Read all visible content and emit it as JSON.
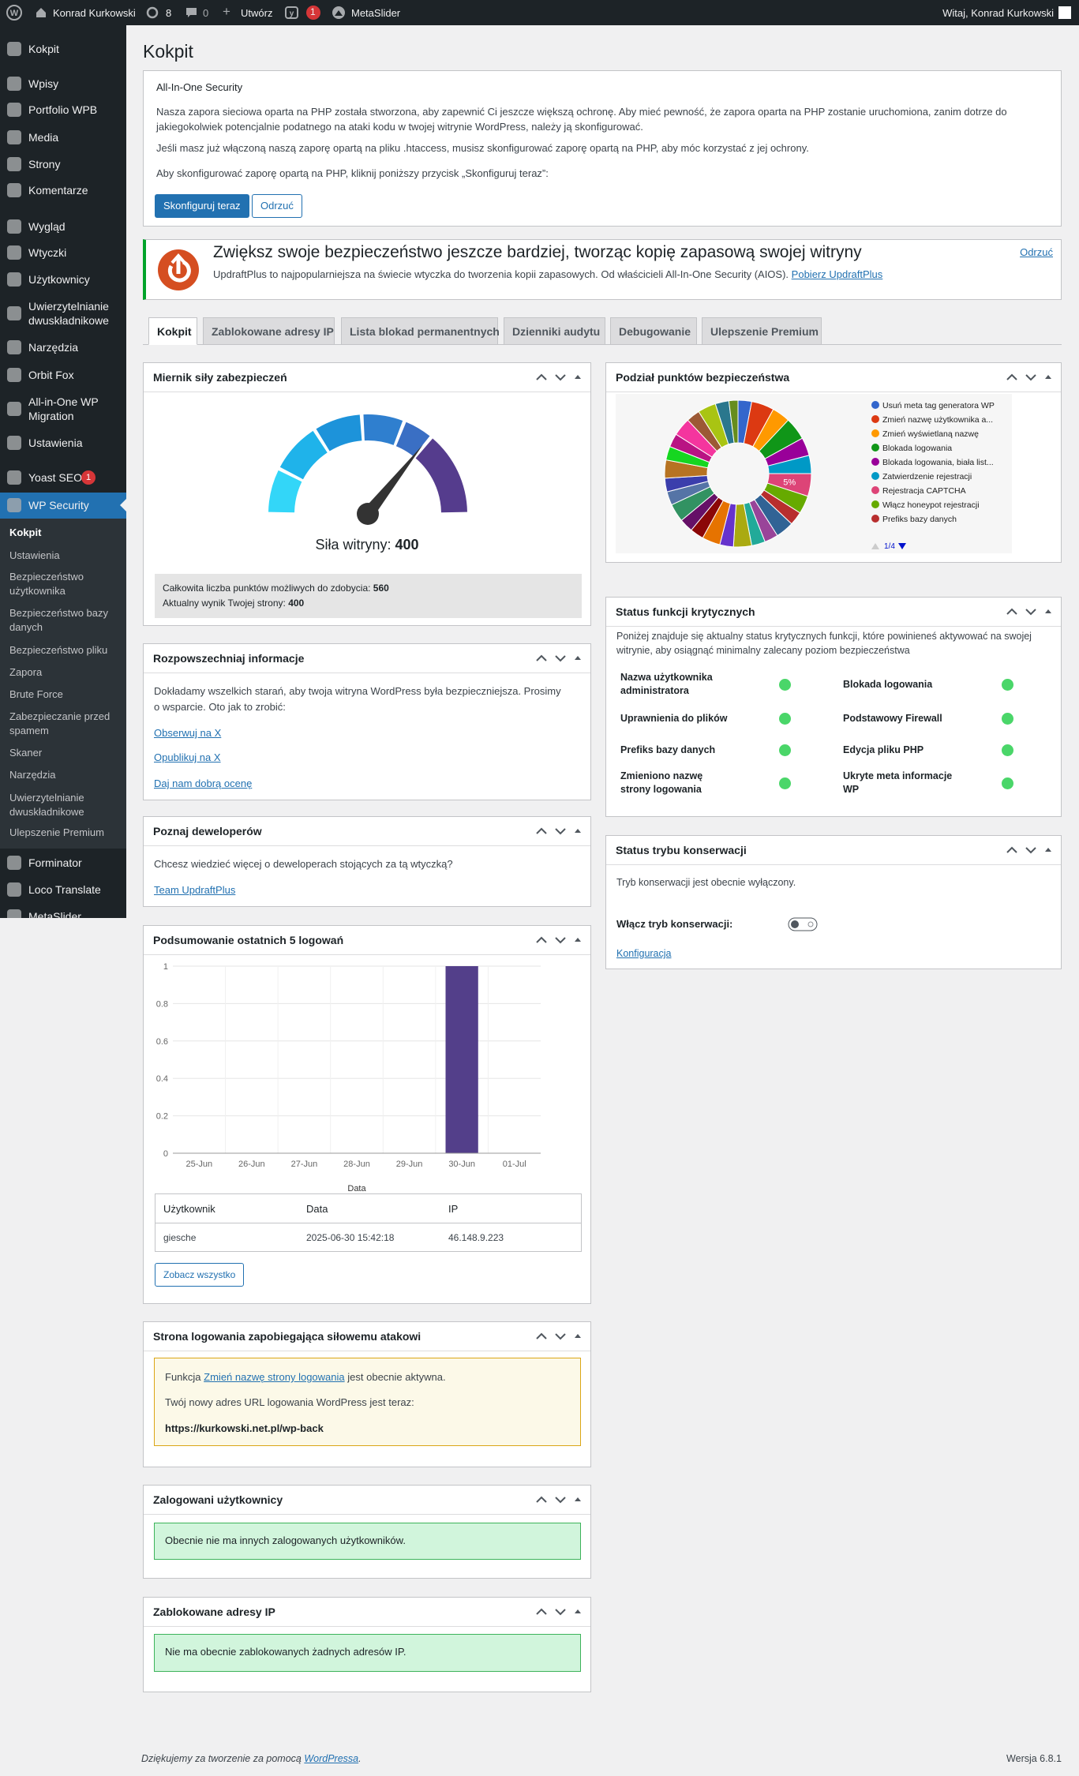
{
  "admin_bar": {
    "site": "Konrad Kurkowski",
    "updates": "8",
    "comments": "0",
    "new": "Utwórz",
    "yoast_badge": "1",
    "metaslider": "MetaSlider",
    "greeting": "Witaj, Konrad Kurkowski"
  },
  "menu": [
    "Kokpit",
    "Wpisy",
    "Portfolio WPB",
    "Media",
    "Strony",
    "Komentarze",
    "Wygląd",
    "Wtyczki",
    "Użytkownicy",
    "Uwierzytelnianie dwuskładnikowe",
    "Narzędzia",
    "Orbit Fox",
    "All-in-One WP Migration",
    "Ustawienia",
    "Yoast SEO",
    "WP Security",
    "Forminator",
    "Loco Translate",
    "MetaSlider"
  ],
  "menu_badge": "1",
  "submenu": [
    "Kokpit",
    "Ustawienia",
    "Bezpieczeństwo użytkownika",
    "Bezpieczeństwo bazy danych",
    "Bezpieczeństwo pliku",
    "Zapora",
    "Brute Force",
    "Zabezpieczanie przed spamem",
    "Skaner",
    "Narzędzia",
    "Uwierzytelnianie dwuskładnikowe",
    "Ulepszenie Premium"
  ],
  "page_title": "Kokpit",
  "notice": {
    "title": "All-In-One Security",
    "p1": "Nasza zapora sieciowa oparta na PHP została stworzona, aby zapewnić Ci jeszcze większą ochronę. Aby mieć pewność, że zapora oparta na PHP zostanie uruchomiona, zanim dotrze do jakiegokolwiek potencjalnie podatnego na ataki kodu w twojej witrynie WordPress, należy ją skonfigurować.",
    "p2": "Jeśli masz już włączoną naszą zaporę opartą na pliku .htaccess, musisz skonfigurować zaporę opartą na PHP, aby móc korzystać z jej ochrony.",
    "p3": "Aby skonfigurować zaporę opartą na PHP, kliknij poniższy przycisk „Skonfiguruj teraz”:",
    "primary": "Skonfiguruj teraz",
    "secondary": "Odrzuć"
  },
  "updraft": {
    "heading": "Zwiększ swoje bezpieczeństwo jeszcze bardziej, tworząc kopię zapasową swojej witryny",
    "text": "UpdraftPlus to najpopularniejsza na świecie wtyczka do tworzenia kopii zapasowych. Od właścicieli All-In-One Security (AIOS).",
    "link": "Pobierz UpdraftPlus",
    "dismiss": "Odrzuć"
  },
  "tabs": [
    "Kokpit",
    "Zablokowane adresy IP",
    "Lista blokad permanentnych",
    "Dzienniki audytu",
    "Debugowanie",
    "Ulepszenie Premium"
  ],
  "meter": {
    "title": "Miernik siły zabezpieczeń",
    "label": "Siła witryny:",
    "score": 400,
    "max": 560,
    "max_label": "Całkowita liczba punktów możliwych do zdobycia:",
    "current_label": "Aktualny wynik Twojej strony:"
  },
  "spread": {
    "title": "Rozpowszechniaj informacje",
    "text": "Dokładamy wszelkich starań, aby twoja witryna WordPress była bezpieczniejsza. Prosimy o wsparcie. Oto jak to zrobić:",
    "links": [
      "Obserwuj na X",
      "Opublikuj na X",
      "Daj nam dobrą ocenę"
    ]
  },
  "devs": {
    "title": "Poznaj deweloperów",
    "text": "Chcesz wiedzieć więcej o deweloperach stojących za tą wtyczką?",
    "link": "Team UpdraftPlus"
  },
  "logins": {
    "title": "Podsumowanie ostatnich 5 logowań",
    "columns": [
      "Użytkownik",
      "Data",
      "IP"
    ],
    "rows": [
      [
        "giesche",
        "2025-06-30 15:42:18",
        "46.148.9.223"
      ]
    ],
    "button": "Zobacz wszystko"
  },
  "rename": {
    "title": "Strona logowania zapobiegająca siłowemu atakowi",
    "pre": "Funkcja",
    "link": "Zmień nazwę strony logowania",
    "post": "jest obecnie aktywna.",
    "line2": "Twój nowy adres URL logowania WordPress jest teraz:",
    "url": "https://kurkowski.net.pl/wp-back"
  },
  "logged": {
    "title": "Zalogowani użytkownicy",
    "text": "Obecnie nie ma innych zalogowanych użytkowników."
  },
  "blocked": {
    "title": "Zablokowane adresy IP",
    "text": "Nie ma obecnie zablokowanych żadnych adresów IP."
  },
  "points": {
    "title": "Podział punktów bezpieczeństwa"
  },
  "critical": {
    "title": "Status funkcji krytycznych",
    "intro": "Poniżej znajduje się aktualny status krytycznych funkcji, które powinieneś aktywować na swojej witrynie, aby osiągnąć minimalny zalecany poziom bezpieczeństwa",
    "items": [
      "Nazwa użytkownika administratora",
      "Blokada logowania",
      "Uprawnienia do plików",
      "Podstawowy Firewall",
      "Prefiks bazy danych",
      "Edycja pliku PHP",
      "Zmieniono nazwę strony logowania",
      "Ukryte meta informacje WP"
    ]
  },
  "maintenance": {
    "title": "Status trybu konserwacji",
    "text": "Tryb konserwacji jest obecnie wyłączony.",
    "toggle": "Włącz tryb konserwacji:",
    "link": "Konfiguracja"
  },
  "footer": {
    "text": "Dziękujemy za tworzenie za pomocą",
    "link": "WordPressa",
    "end": ".",
    "version": "Wersja 6.8.1"
  },
  "chart_data": [
    {
      "type": "bar",
      "xlabel": "Data",
      "categories": [
        "25-Jun",
        "26-Jun",
        "27-Jun",
        "28-Jun",
        "29-Jun",
        "30-Jun",
        "01-Jul"
      ],
      "values": [
        0,
        0,
        0,
        0,
        0,
        1,
        0
      ],
      "color": "#533f8a",
      "ylim": [
        0,
        1
      ],
      "yticks": [
        0,
        0.2,
        0.4,
        0.6,
        0.8,
        1
      ],
      "grid": true
    },
    {
      "type": "pie",
      "donut": true,
      "values": [
        3,
        5,
        4,
        5,
        4,
        4,
        5,
        4,
        3,
        4,
        3,
        3,
        4,
        3,
        4,
        3,
        3,
        4,
        3,
        3,
        4,
        3,
        3,
        4,
        3,
        4,
        3,
        2
      ],
      "value_labels": [
        null,
        null,
        null,
        null,
        null,
        null,
        "5%",
        null,
        null,
        null,
        null,
        null,
        null,
        null,
        null,
        null,
        null,
        null,
        null,
        null,
        null,
        null,
        null,
        null,
        null,
        null,
        null,
        null
      ],
      "colors": [
        "#3366cc",
        "#dc3912",
        "#ff9900",
        "#109618",
        "#990099",
        "#0099c6",
        "#dd4477",
        "#66aa00",
        "#b82e2e",
        "#316395",
        "#994499",
        "#22aa99",
        "#aaaa11",
        "#6633cc",
        "#e67300",
        "#8b0707",
        "#651067",
        "#329262",
        "#5574a6",
        "#3b3eac",
        "#b77322",
        "#16d620",
        "#b91383",
        "#f4359e",
        "#9c5935",
        "#a9c413",
        "#2a778d",
        "#668d1c"
      ],
      "legend": [
        {
          "name": "Usuń meta tag generatora WP",
          "color": "#3366cc"
        },
        {
          "name": "Zmień nazwę użytkownika a...",
          "color": "#dc3912"
        },
        {
          "name": "Zmień wyświetlaną nazwę",
          "color": "#ff9900"
        },
        {
          "name": "Blokada logowania",
          "color": "#109618"
        },
        {
          "name": "Blokada logowania, biała list...",
          "color": "#990099"
        },
        {
          "name": "Zatwierdzenie rejestracji",
          "color": "#0099c6"
        },
        {
          "name": "Rejestracja CAPTCHA",
          "color": "#dd4477"
        },
        {
          "name": "Włącz honeypot rejestracji",
          "color": "#66aa00"
        },
        {
          "name": "Prefiks bazy danych",
          "color": "#b82e2e"
        }
      ],
      "legend_page": "1/4"
    }
  ]
}
